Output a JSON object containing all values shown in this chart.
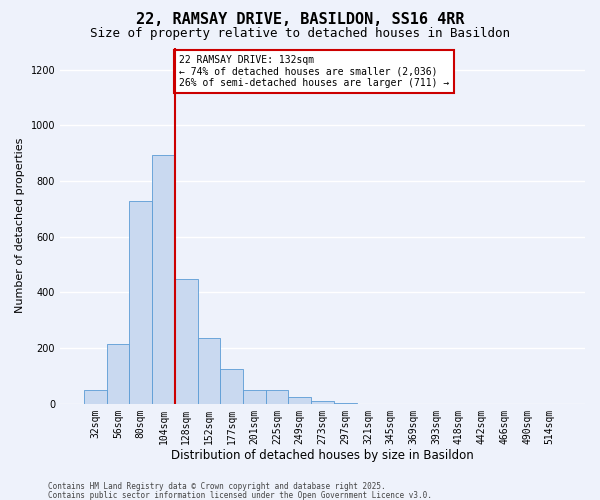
{
  "title1": "22, RAMSAY DRIVE, BASILDON, SS16 4RR",
  "title2": "Size of property relative to detached houses in Basildon",
  "xlabel": "Distribution of detached houses by size in Basildon",
  "ylabel": "Number of detached properties",
  "categories": [
    "32sqm",
    "56sqm",
    "80sqm",
    "104sqm",
    "128sqm",
    "152sqm",
    "177sqm",
    "201sqm",
    "225sqm",
    "249sqm",
    "273sqm",
    "297sqm",
    "321sqm",
    "345sqm",
    "369sqm",
    "393sqm",
    "418sqm",
    "442sqm",
    "466sqm",
    "490sqm",
    "514sqm"
  ],
  "values": [
    50,
    215,
    730,
    895,
    450,
    235,
    125,
    50,
    50,
    25,
    10,
    2,
    0,
    0,
    0,
    0,
    0,
    0,
    0,
    0,
    0
  ],
  "bar_color": "#c9d9f0",
  "bar_edge_color": "#5b9bd5",
  "red_line_bin_index": 4,
  "red_line_color": "#cc0000",
  "annotation_text": "22 RAMSAY DRIVE: 132sqm\n← 74% of detached houses are smaller (2,036)\n26% of semi-detached houses are larger (711) →",
  "annotation_box_facecolor": "#ffffff",
  "annotation_box_edgecolor": "#cc0000",
  "ylim": [
    0,
    1280
  ],
  "yticks": [
    0,
    200,
    400,
    600,
    800,
    1000,
    1200
  ],
  "footer1": "Contains HM Land Registry data © Crown copyright and database right 2025.",
  "footer2": "Contains public sector information licensed under the Open Government Licence v3.0.",
  "bg_color": "#eef2fb",
  "plot_bg_color": "#eef2fb",
  "grid_color": "#ffffff",
  "title1_fontsize": 11,
  "title2_fontsize": 9,
  "tick_fontsize": 7,
  "ylabel_fontsize": 8,
  "xlabel_fontsize": 8.5,
  "annotation_fontsize": 7,
  "footer_fontsize": 5.5
}
